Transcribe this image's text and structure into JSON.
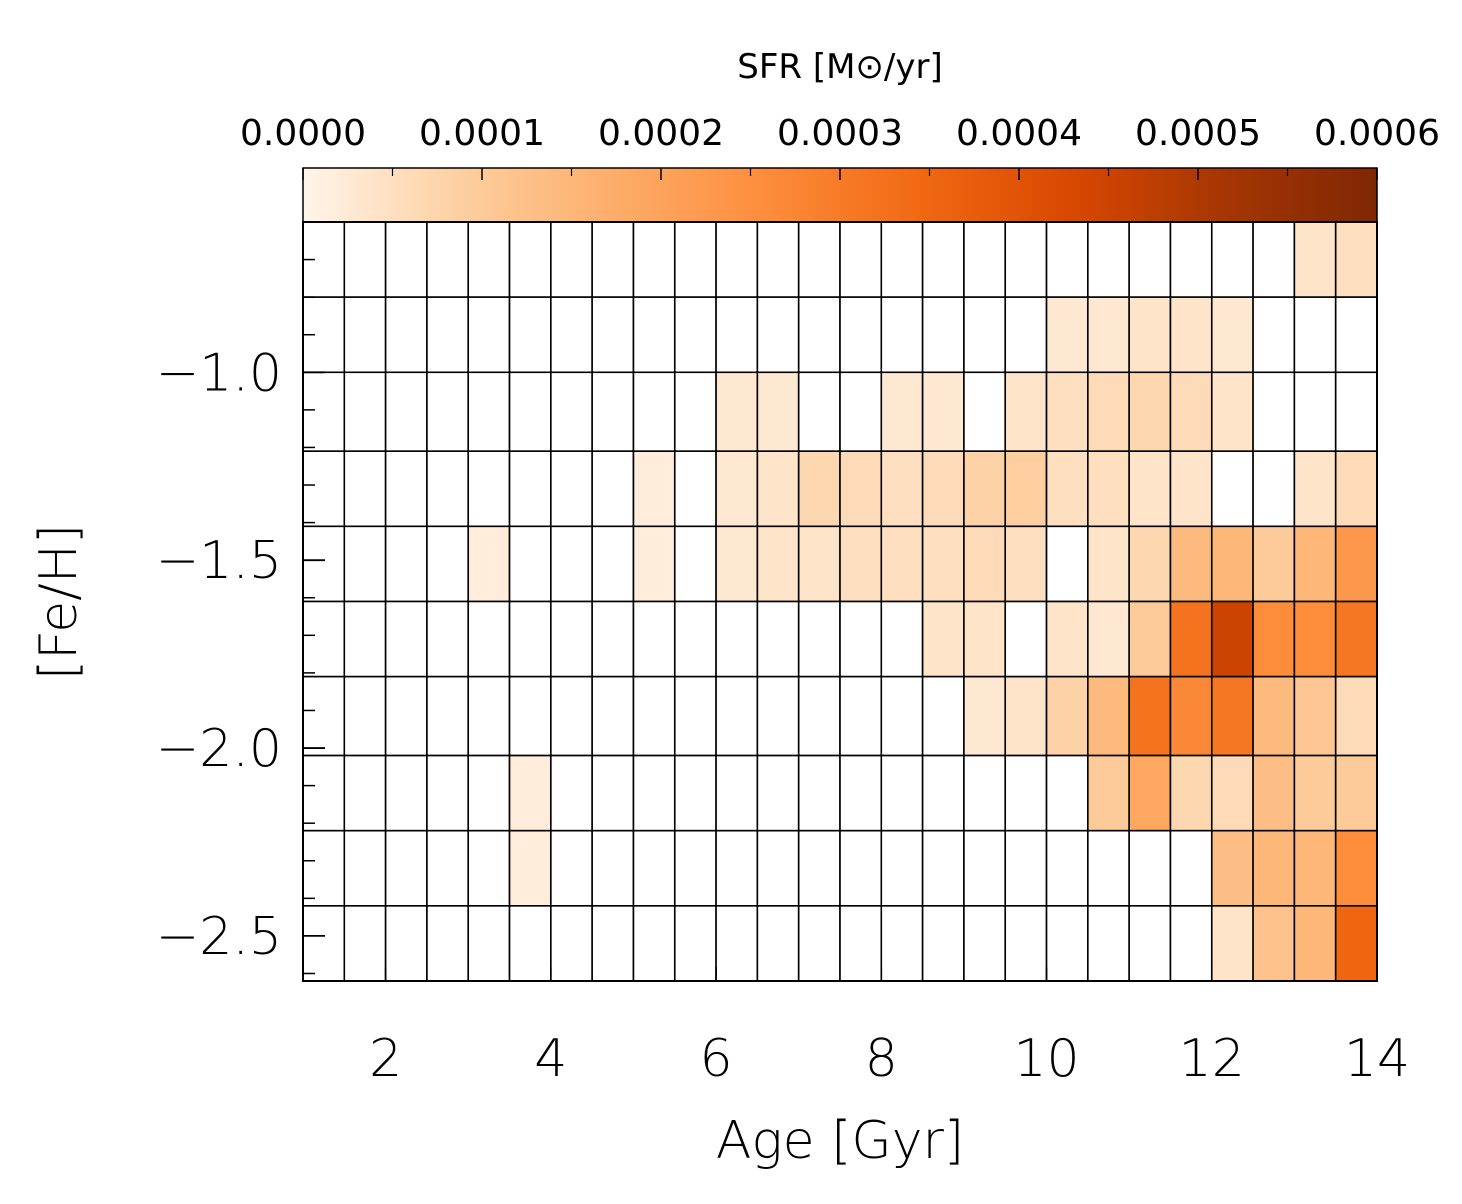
{
  "chart_data": {
    "type": "heatmap",
    "xlabel": "Age [Gyr]",
    "ylabel": "[Fe/H]",
    "xlim": [
      1.0,
      14.0
    ],
    "ylim": [
      -2.62,
      -0.6
    ],
    "x_ticks": [
      "2",
      "4",
      "6",
      "8",
      "10",
      "12",
      "14"
    ],
    "x_tick_values": [
      2,
      4,
      6,
      8,
      10,
      12,
      14
    ],
    "y_ticks": [
      "−1.0",
      "−1.5",
      "−2.0",
      "−2.5"
    ],
    "y_tick_values": [
      -1.0,
      -1.5,
      -2.0,
      -2.5
    ],
    "colorbar": {
      "label": "SFR [M⊙/yr]",
      "range": [
        0.0,
        0.0006
      ],
      "tick_labels": [
        "0.0000",
        "0.0001",
        "0.0002",
        "0.0003",
        "0.0004",
        "0.0005",
        "0.0006"
      ],
      "tick_values": [
        0.0,
        0.0001,
        0.0002,
        0.0003,
        0.0004,
        0.0005,
        0.0006
      ],
      "colormap": [
        "#fff5eb",
        "#fdd0a2",
        "#fdae6b",
        "#fd8d3c",
        "#f16913",
        "#d94801",
        "#a63603",
        "#7f2704"
      ]
    },
    "n_cols": 26,
    "n_rows": 10,
    "age_bin_width_gyr": 0.5,
    "feh_bin_edges": [
      -2.62,
      -2.42,
      -2.22,
      -2.02,
      -1.81,
      -1.61,
      -1.41,
      -1.21,
      -1.0,
      -0.8,
      -0.6
    ],
    "rows_top_to_bottom": [
      [
        0,
        0,
        0,
        0,
        0,
        0,
        0,
        0,
        0,
        0,
        0,
        0,
        0,
        0,
        0,
        0,
        0,
        0,
        0,
        0,
        0,
        0,
        0,
        0,
        4e-05,
        5e-05
      ],
      [
        0,
        0,
        0,
        0,
        0,
        0,
        0,
        0,
        0,
        0,
        0,
        0,
        0,
        0,
        0,
        0,
        0,
        0,
        3e-05,
        3e-05,
        4e-05,
        4e-05,
        3e-05,
        0,
        0,
        0
      ],
      [
        0,
        0,
        0,
        0,
        0,
        0,
        0,
        0,
        0,
        0,
        3e-05,
        3e-05,
        0,
        0,
        3e-05,
        3e-05,
        0,
        4e-05,
        5e-05,
        6e-05,
        7e-05,
        6e-05,
        4e-05,
        0,
        0,
        0
      ],
      [
        0,
        0,
        0,
        0,
        0,
        0,
        0,
        0,
        2e-05,
        0,
        3e-05,
        4e-05,
        7e-05,
        6e-05,
        5e-05,
        6e-05,
        8e-05,
        9e-05,
        5e-05,
        5e-05,
        4e-05,
        4e-05,
        0,
        0,
        4e-05,
        6e-05
      ],
      [
        0,
        0,
        0,
        0,
        2e-05,
        0,
        0,
        0,
        2e-05,
        0,
        3e-05,
        4e-05,
        4e-05,
        5e-05,
        5e-05,
        5e-05,
        6e-05,
        5e-05,
        0,
        4e-05,
        7e-05,
        0.00014,
        0.00015,
        0.0001,
        0.00015,
        0.00023
      ],
      [
        0,
        0,
        0,
        0,
        0,
        0,
        0,
        0,
        0,
        0,
        0,
        0,
        0,
        0,
        0,
        4e-05,
        4e-05,
        0,
        4e-05,
        3e-05,
        0.0001,
        0.00032,
        0.00045,
        0.00026,
        0.00026,
        0.00031
      ],
      [
        0,
        0,
        0,
        0,
        0,
        0,
        0,
        0,
        0,
        0,
        0,
        0,
        0,
        0,
        0,
        0,
        3e-05,
        4e-05,
        8e-05,
        0.00014,
        0.00032,
        0.00027,
        0.00031,
        0.00014,
        0.00011,
        6e-05
      ],
      [
        0,
        0,
        0,
        0,
        0,
        2e-05,
        0,
        0,
        0,
        0,
        0,
        0,
        0,
        0,
        0,
        0,
        0,
        0,
        0,
        0.0001,
        0.00019,
        7e-05,
        6e-05,
        0.00013,
        0.0001,
        0.0001
      ],
      [
        0,
        0,
        0,
        0,
        0,
        2e-05,
        0,
        0,
        0,
        0,
        0,
        0,
        0,
        0,
        0,
        0,
        0,
        0,
        0,
        0,
        0,
        0,
        0.00013,
        0.00015,
        0.00015,
        0.00026
      ],
      [
        0,
        0,
        0,
        0,
        0,
        0,
        0,
        0,
        0,
        0,
        0,
        0,
        0,
        0,
        0,
        0,
        0,
        0,
        0,
        0,
        0,
        0,
        4e-05,
        0.00012,
        0.00015,
        0.00035
      ]
    ]
  }
}
